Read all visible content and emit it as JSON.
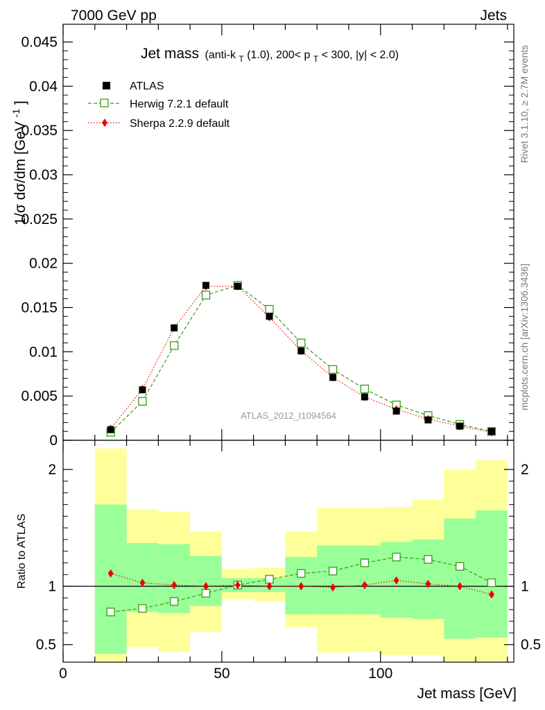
{
  "header": {
    "left": "7000 GeV pp",
    "right": "Jets"
  },
  "side_labels": {
    "rivet": "Rivet 3.1.10, ≥ 2.7M events",
    "source": "mcplots.cern.ch [arXiv:1306.3436]"
  },
  "analysis_id": "ATLAS_2012_I1094564",
  "colors": {
    "data": "#000000",
    "herwig": "#3a9a10",
    "sherpa": "#ee0000",
    "band_inner": "#99ff99",
    "band_outer": "#ffff99"
  },
  "chart_data": [
    {
      "type": "scatter",
      "title": "Jet mass (anti-k_T(1.0), 200< p_T < 300, |y| < 2.0)",
      "title_parts": {
        "main": "Jet mass",
        "p1": "(anti-k",
        "s1": "T",
        "p2": "(1.0), 200< p",
        "s2": "T",
        "p3": " < 300, |y| < 2.0)"
      },
      "ylabel": "1/σ dσ/dm [GeV⁻¹]",
      "ylabel_parts": {
        "main": "1/σ dσ/dm [GeV",
        "sup": "-1",
        "close": "]"
      },
      "xlim": [
        0,
        142
      ],
      "ylim": [
        0,
        0.047
      ],
      "yticks": [
        "0",
        "0.005",
        "0.01",
        "0.015",
        "0.02",
        "0.025",
        "0.03",
        "0.035",
        "0.04",
        "0.045"
      ],
      "legend_position": "top-left",
      "x": [
        15,
        25,
        35,
        45,
        55,
        65,
        75,
        85,
        95,
        105,
        115,
        125,
        135
      ],
      "series": [
        {
          "name": "ATLAS",
          "values": [
            0.0012,
            0.0057,
            0.0127,
            0.0175,
            0.0174,
            0.014,
            0.0101,
            0.0071,
            0.0049,
            0.0033,
            0.0023,
            0.0016,
            0.001
          ]
        },
        {
          "name": "Herwig 7.2.1 default",
          "values": [
            0.0009,
            0.0044,
            0.0107,
            0.0164,
            0.0175,
            0.0148,
            0.011,
            0.008,
            0.0058,
            0.004,
            0.0028,
            0.0018,
            0.001
          ]
        },
        {
          "name": "Sherpa 2.2.9 default",
          "values": [
            0.0013,
            0.0058,
            0.0127,
            0.0174,
            0.0174,
            0.0139,
            0.0101,
            0.0071,
            0.0049,
            0.0035,
            0.0024,
            0.0016,
            0.0009
          ]
        }
      ]
    },
    {
      "type": "scatter",
      "title": "",
      "xlabel": "Jet mass [GeV]",
      "ylabel": "Ratio to ATLAS",
      "xlim": [
        0,
        142
      ],
      "ylim": [
        0.35,
        2.25
      ],
      "xticks": [
        "0",
        "50",
        "100"
      ],
      "yticks": [
        "0.5",
        "1",
        "2"
      ],
      "reference_line": 1,
      "x": [
        15,
        25,
        35,
        45,
        55,
        65,
        75,
        85,
        95,
        105,
        115,
        125,
        135
      ],
      "bands": {
        "x_edges": [
          10,
          20,
          30,
          40,
          50,
          60,
          70,
          80,
          90,
          100,
          110,
          120,
          130,
          140
        ],
        "inner_low": [
          0.42,
          0.78,
          0.77,
          0.83,
          0.95,
          0.95,
          0.76,
          0.76,
          0.76,
          0.73,
          0.72,
          0.55,
          0.56
        ],
        "inner_high": [
          1.7,
          1.37,
          1.36,
          1.26,
          1.07,
          1.07,
          1.25,
          1.35,
          1.35,
          1.38,
          1.4,
          1.58,
          1.65
        ],
        "outer_low": [
          0.35,
          0.48,
          0.44,
          0.61,
          0.89,
          0.87,
          0.65,
          0.43,
          0.44,
          0.41,
          0.41,
          0.35,
          0.35
        ],
        "outer_high": [
          2.18,
          1.66,
          1.64,
          1.47,
          1.15,
          1.16,
          1.47,
          1.67,
          1.67,
          1.68,
          1.74,
          2.0,
          2.08
        ]
      },
      "series": [
        {
          "name": "Herwig 7.2.1 default",
          "values": [
            0.78,
            0.81,
            0.87,
            0.94,
            1.01,
            1.06,
            1.11,
            1.13,
            1.2,
            1.25,
            1.23,
            1.17,
            1.03
          ]
        },
        {
          "name": "Sherpa 2.2.9 default",
          "values": [
            1.11,
            1.03,
            1.01,
            1.0,
            1.01,
            1.0,
            1.0,
            0.99,
            1.01,
            1.05,
            1.02,
            1.0,
            0.93
          ]
        }
      ]
    }
  ]
}
